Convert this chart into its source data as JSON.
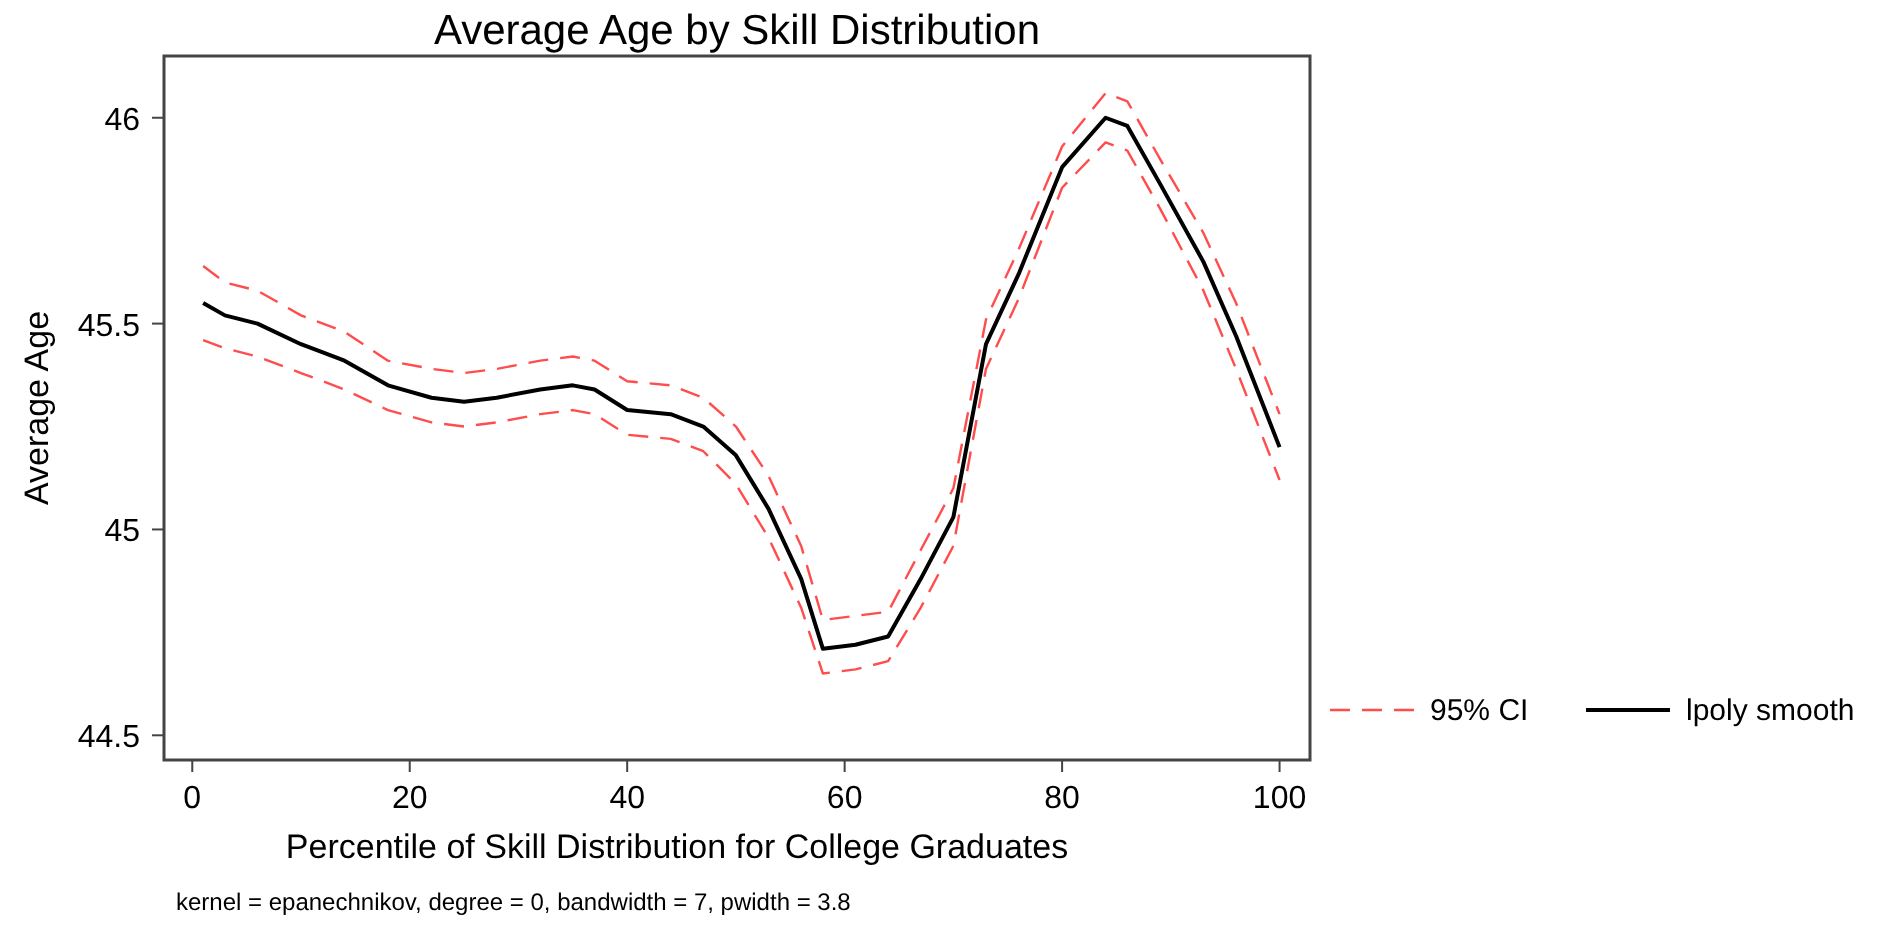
{
  "chart_data": {
    "type": "line",
    "title": "Average Age by Skill Distribution",
    "xlabel": "Percentile of Skill Distribution for College Graduates",
    "ylabel": "Average Age",
    "annotations": [
      "kernel = epanechnikov, degree = 0, bandwidth = 7, pwidth = 3.8"
    ],
    "x": [
      1,
      3,
      6,
      10,
      14,
      18,
      22,
      25,
      28,
      32,
      35,
      37,
      40,
      44,
      47,
      50,
      53,
      56,
      58,
      61,
      64,
      67,
      70,
      73,
      76,
      80,
      84,
      86,
      89,
      93,
      96,
      100
    ],
    "series": [
      {
        "name": "95% CI",
        "color": "#ff4d4d",
        "line_style": "dashed",
        "values": [
          45.64,
          45.6,
          45.58,
          45.52,
          45.48,
          45.41,
          45.39,
          45.38,
          45.39,
          45.41,
          45.42,
          45.41,
          45.36,
          45.35,
          45.32,
          45.25,
          45.13,
          44.96,
          44.78,
          44.79,
          44.8,
          44.95,
          45.1,
          45.51,
          45.68,
          45.93,
          46.06,
          46.04,
          45.9,
          45.72,
          45.55,
          45.28
        ]
      },
      {
        "color": "#ff4d4d",
        "line_style": "dashed",
        "values": [
          45.46,
          45.44,
          45.42,
          45.38,
          45.34,
          45.29,
          45.26,
          45.25,
          45.26,
          45.28,
          45.29,
          45.28,
          45.23,
          45.22,
          45.19,
          45.11,
          44.98,
          44.81,
          44.65,
          44.66,
          44.68,
          44.81,
          44.96,
          45.39,
          45.56,
          45.83,
          45.94,
          45.92,
          45.78,
          45.58,
          45.39,
          45.12
        ]
      },
      {
        "name": "lpoly smooth",
        "color": "#000000",
        "line_style": "solid",
        "values": [
          45.55,
          45.52,
          45.5,
          45.45,
          45.41,
          45.35,
          45.32,
          45.31,
          45.32,
          45.34,
          45.35,
          45.34,
          45.29,
          45.28,
          45.25,
          45.18,
          45.05,
          44.88,
          44.71,
          44.72,
          44.74,
          44.88,
          45.03,
          45.45,
          45.62,
          45.88,
          46.0,
          45.98,
          45.84,
          45.65,
          45.47,
          45.2
        ]
      }
    ],
    "xlim": [
      -2.6,
      102.8
    ],
    "ylim": [
      44.44,
      46.15
    ],
    "xticks": [
      0,
      20,
      40,
      60,
      80,
      100
    ],
    "yticks": [
      44.5,
      45,
      45.5,
      46
    ],
    "grid": false,
    "legend": "right",
    "marker": "none"
  }
}
